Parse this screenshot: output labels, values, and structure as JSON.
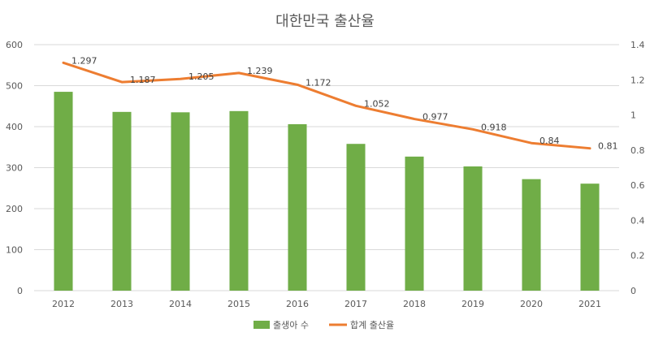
{
  "chart_data": {
    "type": "bar+line",
    "title": "대한만국 출산율",
    "categories": [
      "2012",
      "2013",
      "2014",
      "2015",
      "2016",
      "2017",
      "2018",
      "2019",
      "2020",
      "2021"
    ],
    "series": [
      {
        "name": "출생아 수",
        "type": "bar",
        "axis": "left",
        "color": "#70ad47",
        "values": [
          485,
          436,
          435,
          438,
          406,
          358,
          327,
          303,
          272,
          261
        ]
      },
      {
        "name": "합계 출산율",
        "type": "line",
        "axis": "right",
        "color": "#ed7d31",
        "values": [
          1.297,
          1.187,
          1.205,
          1.239,
          1.172,
          1.052,
          0.977,
          0.918,
          0.84,
          0.81
        ],
        "data_labels": [
          "1.297",
          "1.187",
          "1.205",
          "1.239",
          "1.172",
          "1.052",
          "0.977",
          "0.918",
          "0.84",
          "0.81"
        ]
      }
    ],
    "y_left": {
      "range": [
        0,
        600
      ],
      "ticks": [
        "0",
        "100",
        "200",
        "300",
        "400",
        "500",
        "600"
      ]
    },
    "y_right": {
      "range": [
        0,
        1.4
      ],
      "ticks": [
        "0",
        "0.2",
        "0.4",
        "0.6",
        "0.8",
        "1",
        "1.2",
        "1.4"
      ]
    },
    "grid": true,
    "legend_position": "bottom-center",
    "colors": {
      "grid": "#d9d9d9",
      "axis_text": "#595959",
      "title": "#595959"
    }
  }
}
